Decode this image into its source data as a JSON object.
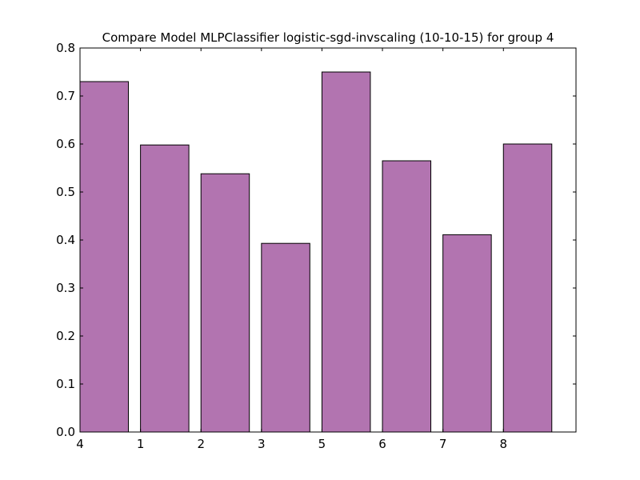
{
  "chart_data": {
    "type": "bar",
    "title": "Compare Model MLPClassifier logistic-sgd-invscaling (10-10-15) for group 4",
    "xlabel": "",
    "ylabel": "",
    "categories": [
      "4",
      "1",
      "2",
      "3",
      "5",
      "6",
      "7",
      "8"
    ],
    "values": [
      0.73,
      0.598,
      0.538,
      0.393,
      0.75,
      0.565,
      0.411,
      0.6
    ],
    "ylim": [
      0,
      0.8
    ],
    "yticks": [
      0.0,
      0.1,
      0.2,
      0.3,
      0.4,
      0.5,
      0.6,
      0.7,
      0.8
    ],
    "ytick_labels": [
      "0.0",
      "0.1",
      "0.2",
      "0.3",
      "0.4",
      "0.5",
      "0.6",
      "0.7",
      "0.8"
    ],
    "xlim": [
      0,
      8.2
    ],
    "bar_width": 0.8,
    "bar_color": "#b274b0",
    "edge_color": "#000000",
    "grid": false,
    "legend": "none"
  }
}
